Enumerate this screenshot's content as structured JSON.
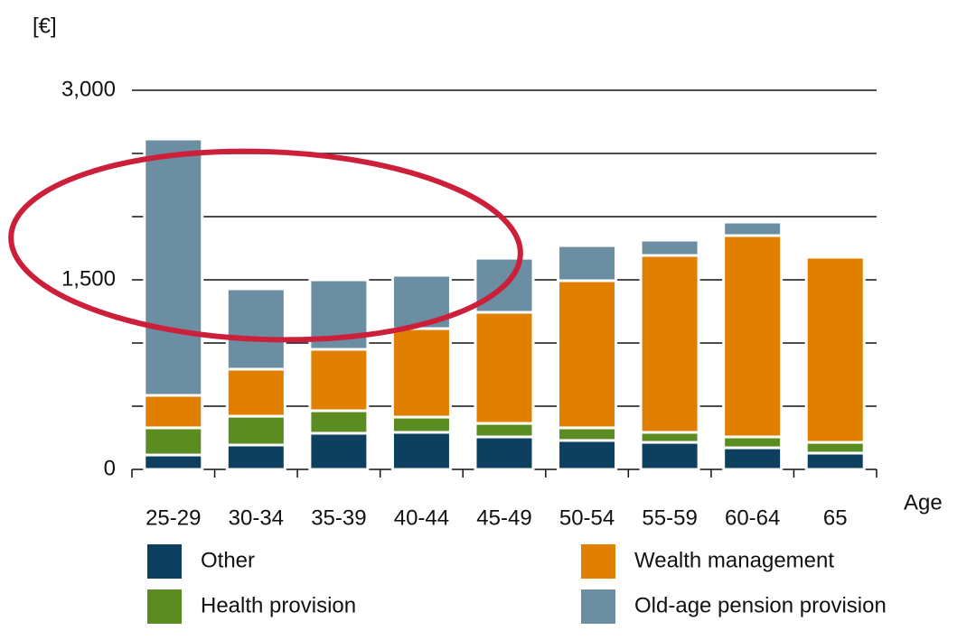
{
  "chart_data": {
    "type": "stacked_bar",
    "y_label": "[€]",
    "x_label": "Age",
    "categories": [
      "25-29",
      "30-34",
      "35-39",
      "40-44",
      "45-49",
      "50-54",
      "55-59",
      "60-64",
      "65"
    ],
    "series": [
      {
        "name": "Other",
        "color": "#0d3f5e",
        "values": [
          114,
          193,
          286,
          293,
          257,
          229,
          214,
          171,
          129
        ]
      },
      {
        "name": "Health provision",
        "color": "#5b8c22",
        "values": [
          215,
          228,
          178,
          121,
          107,
          100,
          79,
          86,
          85
        ]
      },
      {
        "name": "Wealth management",
        "color": "#e07f00",
        "values": [
          257,
          372,
          486,
          700,
          879,
          1164,
          1400,
          1593,
          1465
        ]
      },
      {
        "name": "Old-age pension provision",
        "color": "#6b8ea3",
        "values": [
          2028,
          636,
          550,
          422,
          428,
          278,
          121,
          107,
          0
        ]
      }
    ],
    "ylim": [
      0,
      3000
    ],
    "yticks": [
      0,
      {
        "value": 1500,
        "label": "1,500"
      },
      {
        "value": 3000,
        "label": "3,000"
      }
    ],
    "yminor": [
      500,
      1000,
      2000,
      2500
    ],
    "grid": true
  }
}
